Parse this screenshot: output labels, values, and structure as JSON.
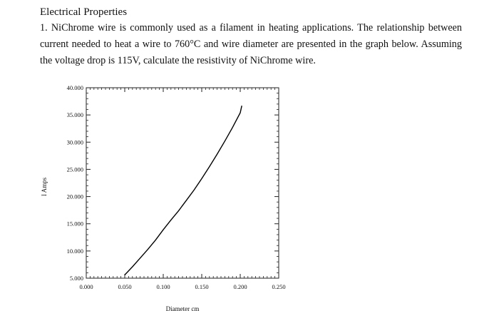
{
  "question": {
    "heading": "Electrical Properties",
    "problem_number": "1.",
    "problem_text": "NiChrome wire is commonly used as a filament in heating applications.  The relationship between current needed to heat a wire to 760°C and wire diameter are presented in the graph below.  Assuming the voltage drop is 115V, calculate the resistivity of NiChrome wire."
  },
  "chart_data": {
    "type": "line",
    "xlabel": "Diameter cm",
    "ylabel": "I Amps",
    "xlim": [
      0,
      0.25
    ],
    "ylim": [
      5,
      40
    ],
    "x_ticks": [
      "0.000",
      "0.050",
      "0.100",
      "0.150",
      "0.200",
      "0.250"
    ],
    "y_ticks": [
      "5.000",
      "10.000",
      "15.000",
      "20.000",
      "25.000",
      "30.000",
      "35.000",
      "40.000"
    ],
    "grid": false,
    "series": [
      {
        "x": [
          0.05,
          0.06,
          0.07,
          0.08,
          0.09,
          0.1,
          0.11,
          0.12,
          0.13,
          0.14,
          0.15,
          0.16,
          0.17,
          0.18,
          0.19,
          0.2,
          0.202
        ],
        "y": [
          5.6,
          7.1,
          8.7,
          10.3,
          12.0,
          13.9,
          15.7,
          17.4,
          19.3,
          21.2,
          23.3,
          25.5,
          27.8,
          30.2,
          32.7,
          35.4,
          36.7
        ]
      }
    ],
    "color": "#000000"
  }
}
